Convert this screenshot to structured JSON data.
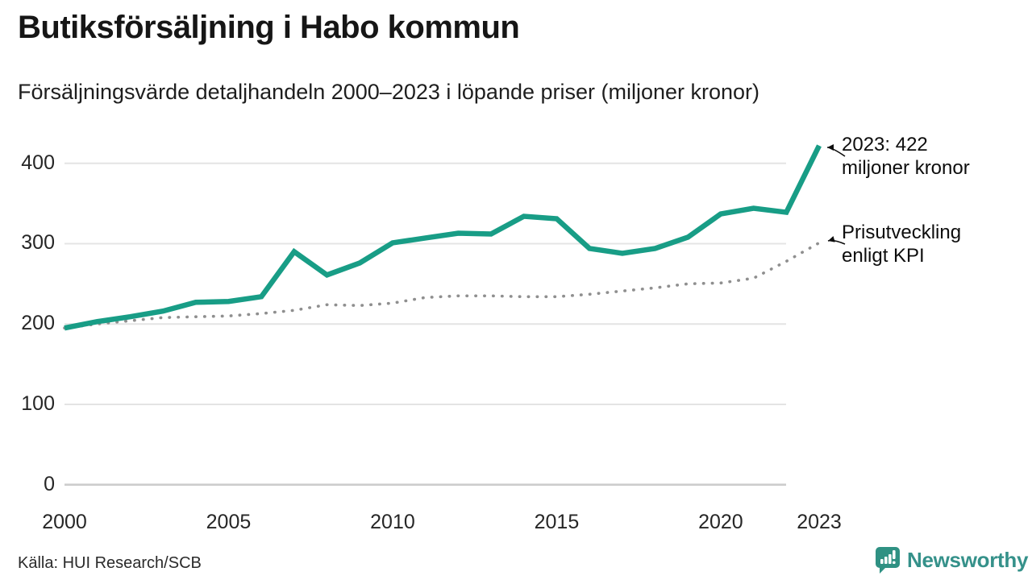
{
  "header": {
    "title": "Butiksförsäljning i Habo kommun",
    "subtitle": "Försäljningsvärde detaljhandeln 2000–2023 i löpande priser (miljoner kronor)"
  },
  "chart_data": {
    "type": "line",
    "title": "Butiksförsäljning i Habo kommun",
    "subtitle": "Försäljningsvärde detaljhandeln 2000–2023 i löpande priser (miljoner kronor)",
    "x": [
      2000,
      2001,
      2002,
      2003,
      2004,
      2005,
      2006,
      2007,
      2008,
      2009,
      2010,
      2011,
      2012,
      2013,
      2014,
      2015,
      2016,
      2017,
      2018,
      2019,
      2020,
      2021,
      2022,
      2023
    ],
    "series": [
      {
        "name": "Butiksförsäljning (löpande priser, miljoner kronor)",
        "style": "solid",
        "color": "#189d86",
        "values": [
          195,
          203,
          209,
          216,
          227,
          228,
          234,
          290,
          261,
          276,
          301,
          307,
          313,
          312,
          334,
          331,
          294,
          288,
          294,
          308,
          337,
          344,
          339,
          422
        ]
      },
      {
        "name": "Prisutveckling enligt KPI",
        "style": "dotted",
        "color": "#8f8f8f",
        "values": [
          195,
          200,
          204,
          208,
          209,
          210,
          213,
          217,
          224,
          223,
          226,
          233,
          235,
          235,
          234,
          234,
          237,
          241,
          245,
          250,
          251,
          257,
          278,
          301
        ]
      }
    ],
    "xlabel": "",
    "ylabel": "",
    "xlim": [
      2000,
      2023
    ],
    "ylim": [
      0,
      440
    ],
    "y_ticks": [
      0,
      100,
      200,
      300,
      400
    ],
    "x_ticks": [
      2000,
      2005,
      2010,
      2015,
      2020,
      2023
    ],
    "grid": "horizontal-only",
    "legend_position": "right-annotations"
  },
  "annotations": {
    "endpoint_line1": "2023: 422",
    "endpoint_line2": "miljoner kronor",
    "kpi_line1": "Prisutveckling",
    "kpi_line2": "enligt KPI"
  },
  "footer": {
    "source": "Källa: HUI Research/SCB",
    "brand": "Newsworthy"
  },
  "colors": {
    "line": "#189d86",
    "kpi_dots": "#8f8f8f",
    "grid": "#e4e4e4",
    "baseline": "#cdcdcd",
    "brand": "#35918a",
    "text": "#161616"
  }
}
